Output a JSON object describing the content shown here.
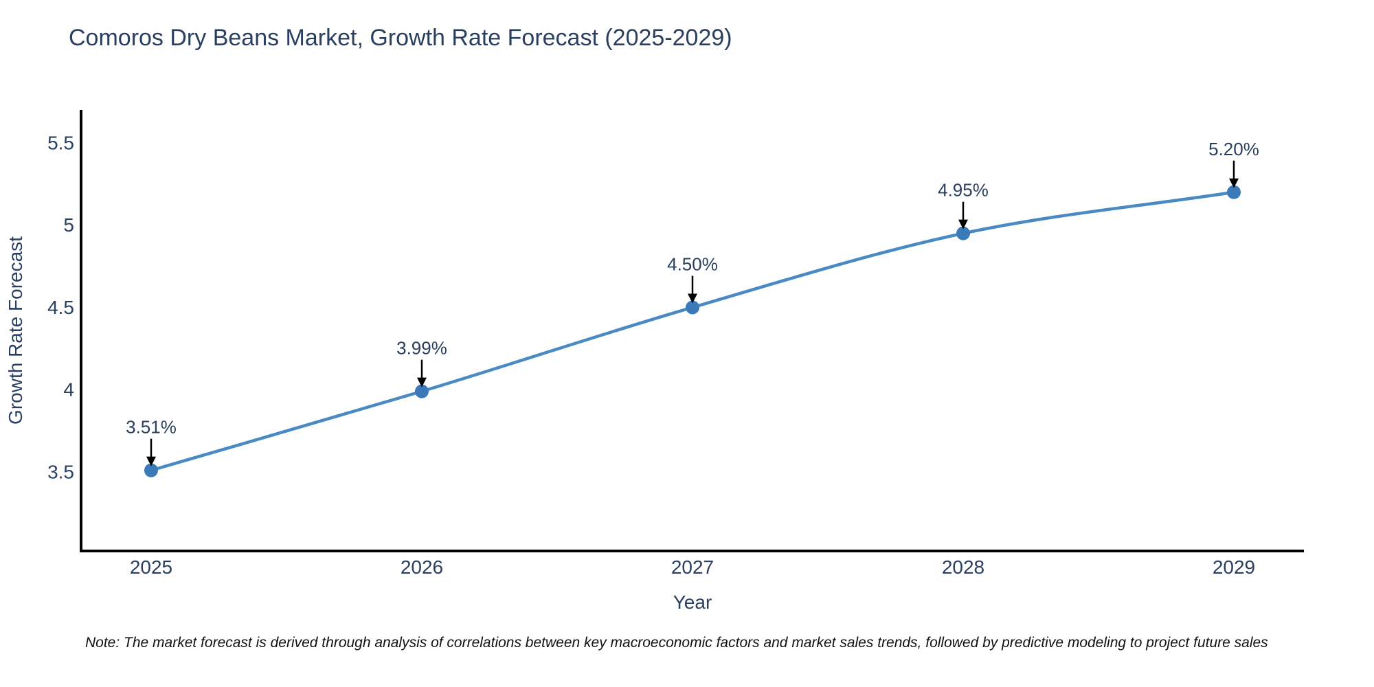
{
  "note": "Note: The market forecast is derived through analysis of correlations between key macroeconomic factors and market sales trends, followed by predictive modeling to project future sales",
  "chart_data": {
    "type": "line",
    "title": "Comoros Dry Beans Market, Growth Rate Forecast (2025-2029)",
    "xlabel": "Year",
    "ylabel": "Growth Rate Forecast",
    "x": [
      "2025",
      "2026",
      "2027",
      "2028",
      "2029"
    ],
    "values": [
      3.51,
      3.99,
      4.5,
      4.95,
      5.2
    ],
    "point_labels": [
      "3.51%",
      "3.99%",
      "4.50%",
      "4.95%",
      "5.20%"
    ],
    "ytick_values": [
      3.5,
      4,
      4.5,
      5,
      5.5
    ],
    "ytick_labels": [
      "3.5",
      "4",
      "4.5",
      "5",
      "5.5"
    ],
    "ylim": [
      3.02,
      5.7
    ],
    "line_shape": "spline",
    "grid": false,
    "legend": "none",
    "colors": {
      "line": "#4a8ac4",
      "marker": "#3a7ab8",
      "arrow": "#000000",
      "axis": "#000000",
      "text": "#2a3f5f"
    }
  }
}
